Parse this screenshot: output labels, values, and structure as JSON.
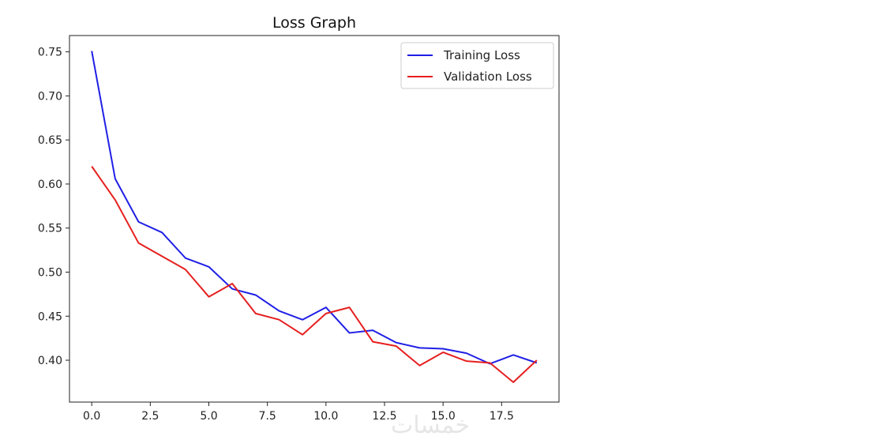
{
  "chart_data": {
    "type": "line",
    "title": "Loss Graph",
    "xlabel": "",
    "ylabel": "",
    "xlim": [
      -0.95,
      19.95
    ],
    "ylim": [
      0.3525,
      0.7685
    ],
    "xticks": [
      0,
      2.5,
      5,
      7.5,
      10,
      12.5,
      15,
      17.5
    ],
    "xtick_labels": [
      "0.0",
      "2.5",
      "5.0",
      "7.5",
      "10.0",
      "12.5",
      "15.0",
      "17.5"
    ],
    "yticks": [
      0.4,
      0.45,
      0.5,
      0.55,
      0.6,
      0.65,
      0.7,
      0.75
    ],
    "ytick_labels": [
      "0.40",
      "0.45",
      "0.50",
      "0.55",
      "0.60",
      "0.65",
      "0.70",
      "0.75"
    ],
    "grid": false,
    "legend_position": "top-right",
    "x": [
      0,
      1,
      2,
      3,
      4,
      5,
      6,
      7,
      8,
      9,
      10,
      11,
      12,
      13,
      14,
      15,
      16,
      17,
      18,
      19
    ],
    "series": [
      {
        "name": "Training Loss",
        "color": "#1f1fe6",
        "values": [
          0.751,
          0.606,
          0.557,
          0.545,
          0.516,
          0.506,
          0.481,
          0.474,
          0.456,
          0.446,
          0.46,
          0.431,
          0.434,
          0.42,
          0.414,
          0.413,
          0.408,
          0.396,
          0.406,
          0.397
        ]
      },
      {
        "name": "Validation Loss",
        "color": "#e61f1f",
        "values": [
          0.62,
          0.582,
          0.533,
          0.518,
          0.503,
          0.472,
          0.487,
          0.453,
          0.446,
          0.429,
          0.453,
          0.46,
          0.421,
          0.416,
          0.394,
          0.409,
          0.399,
          0.397,
          0.375,
          0.4
        ]
      }
    ]
  },
  "watermark": {
    "text": "خمسات"
  }
}
